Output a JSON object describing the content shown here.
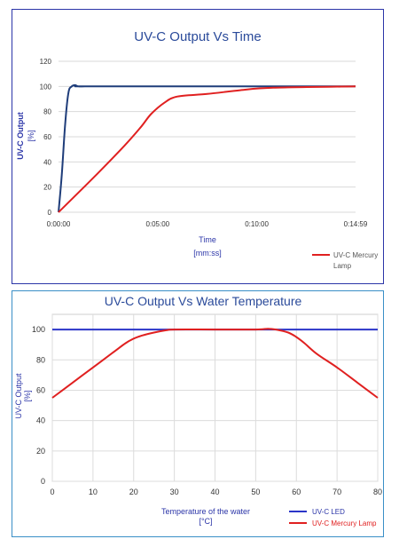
{
  "chart_data": [
    {
      "type": "line",
      "title": "UV-C Output Vs Time",
      "ylabel_line1": "UV-C Output",
      "ylabel_line2": "[%]",
      "xlabel_line1": "Time",
      "xlabel_line2": "[mm:ss]",
      "ylim": [
        0,
        120
      ],
      "yticks": [
        "0",
        "20",
        "40",
        "60",
        "80",
        "100",
        "120"
      ],
      "xlim_seconds": [
        0,
        899
      ],
      "xticks": [
        {
          "value": 0,
          "label": "0:00:00"
        },
        {
          "value": 300,
          "label": "0:05:00"
        },
        {
          "value": 600,
          "label": "0:10:00"
        },
        {
          "value": 899,
          "label": "0:14:59"
        }
      ],
      "legend_placement": "bottom-right",
      "series": [
        {
          "name": "",
          "color": "#1f3d7a",
          "x": [
            0,
            10,
            20,
            30,
            40,
            50,
            60,
            80,
            120,
            899
          ],
          "values": [
            0,
            30,
            70,
            95,
            100,
            101,
            100,
            100,
            100,
            100
          ]
        },
        {
          "name": "UV-C Mercury Lamp",
          "legend_line1": "UV-C Mercury",
          "legend_line2": "Lamp",
          "color": "#e02020",
          "x": [
            0,
            100,
            200,
            250,
            280,
            320,
            360,
            450,
            550,
            650,
            899
          ],
          "values": [
            0,
            26,
            53,
            68,
            78,
            87,
            92,
            94,
            97,
            99,
            100
          ]
        }
      ]
    },
    {
      "type": "line",
      "title": "UV-C Output Vs Water Temperature",
      "ylabel_line1": "UV-C Output",
      "ylabel_line2": "[%]",
      "xlabel_line1": "Temperature of the water",
      "xlabel_line2": "[°C]",
      "ylim": [
        0,
        110
      ],
      "yticks": [
        "0",
        "20",
        "40",
        "60",
        "80",
        "100"
      ],
      "xlim": [
        0,
        80
      ],
      "xticks": [
        "0",
        "10",
        "20",
        "30",
        "40",
        "50",
        "60",
        "70",
        "80"
      ],
      "legend_placement": "bottom-right",
      "series": [
        {
          "name": "UV-C LED",
          "color": "#2b35c8",
          "x": [
            0,
            80
          ],
          "values": [
            100,
            100
          ]
        },
        {
          "name": "UV-C Mercury Lamp",
          "color": "#e02020",
          "x": [
            0,
            5,
            10,
            15,
            18,
            20,
            22,
            25,
            28,
            30,
            40,
            50,
            53,
            55,
            58,
            60,
            62,
            65,
            70,
            75,
            80
          ],
          "values": [
            55,
            65,
            75,
            85,
            91,
            94,
            96,
            98,
            99.5,
            100,
            100,
            100,
            100.5,
            100,
            98,
            95,
            91,
            84,
            75,
            65,
            55
          ]
        }
      ]
    }
  ]
}
